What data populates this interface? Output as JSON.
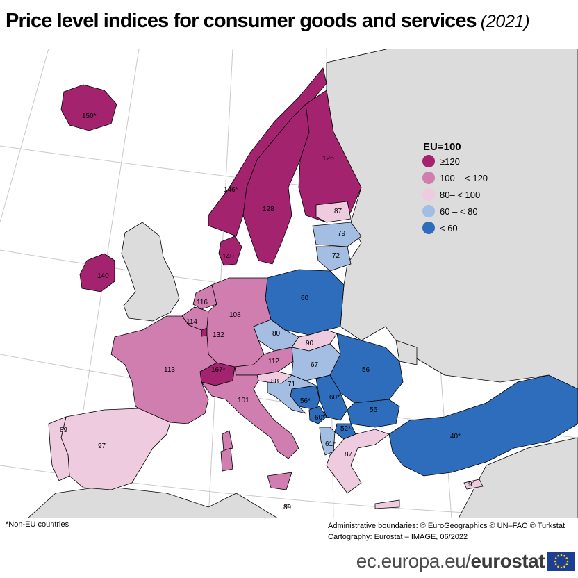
{
  "title": "Price level indices for consumer goods and services",
  "year": "(2021)",
  "legend": {
    "title": "EU=100",
    "classes": [
      {
        "label": "≥120",
        "color": "#a3236f"
      },
      {
        "label": "100 – < 120",
        "color": "#d07db0"
      },
      {
        "label": "80– < 100",
        "color": "#eecbde"
      },
      {
        "label": "60 – < 80",
        "color": "#a3bde3"
      },
      {
        "label": "< 60",
        "color": "#2d6dbc"
      }
    ]
  },
  "map_colors": {
    "sea": "#ffffff",
    "non_covered_land": "#dcdcdc",
    "border": "#000000",
    "graticule": "#c8c8c8"
  },
  "values": {
    "iceland": "150*",
    "norway": "146*",
    "sweden": "128",
    "finland": "126",
    "estonia": "87",
    "latvia": "79",
    "lithuania": "72",
    "denmark": "140",
    "ireland": "140",
    "poland": "60",
    "netherlands": "116",
    "belgium": "114",
    "luxembourg": "132",
    "germany": "108",
    "czechia": "80",
    "slovakia": "90",
    "austria": "112",
    "hungary": "67",
    "romania": "56",
    "france": "113",
    "switzerland": "167*",
    "slovenia": "88",
    "croatia": "71",
    "bosnia": "56*",
    "serbia": "60*",
    "bulgaria": "56",
    "montenegro": "60*",
    "north_macedonia": "52*",
    "albania": "61*",
    "greece": "87",
    "italy": "101",
    "malta": "89",
    "portugal": "89",
    "spain": "97",
    "turkey": "40*",
    "cyprus": "91"
  },
  "footnote": "*Non-EU countries",
  "credits": {
    "line1": "Administrative boundaries: © EuroGeographics © UN–FAO © Turkstat",
    "line2": "Cartography: Eurostat – IMAGE, 06/2022"
  },
  "footer": {
    "url": "ec.europa.eu/",
    "brand": "eurostat"
  }
}
